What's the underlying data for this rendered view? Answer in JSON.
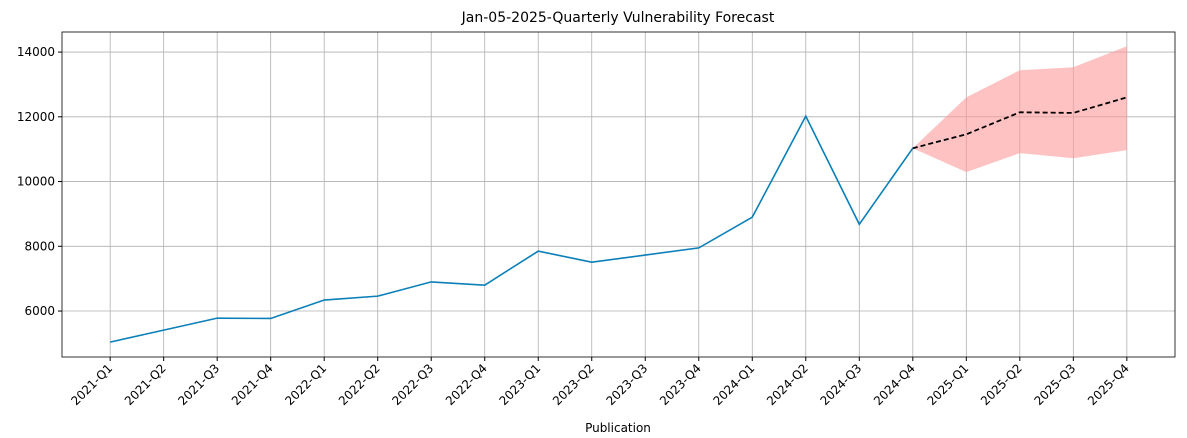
{
  "chart_data": {
    "type": "line",
    "title": "Jan-05-2025-Quarterly Vulnerability Forecast",
    "xlabel": "Publication",
    "categories": [
      "2021-Q1",
      "2021-Q2",
      "2021-Q3",
      "2021-Q4",
      "2022-Q1",
      "2022-Q2",
      "2022-Q3",
      "2022-Q4",
      "2023-Q1",
      "2023-Q2",
      "2023-Q3",
      "2023-Q4",
      "2024-Q1",
      "2024-Q2",
      "2024-Q3",
      "2024-Q4",
      "2025-Q1",
      "2025-Q2",
      "2025-Q3",
      "2025-Q4"
    ],
    "series": [
      {
        "color": "#0a7fb8",
        "values": [
          5040,
          5410,
          5780,
          5770,
          6340,
          6460,
          6900,
          6800,
          7850,
          7510,
          7730,
          7950,
          8900,
          12020,
          8680,
          11030,
          null,
          null,
          null,
          null
        ]
      },
      {
        "color": "#000000",
        "dashed": true,
        "values": [
          null,
          null,
          null,
          null,
          null,
          null,
          null,
          null,
          null,
          null,
          null,
          null,
          null,
          null,
          null,
          11030,
          11460,
          12140,
          12120,
          12600
        ]
      }
    ],
    "band": {
      "color": "#ff9999",
      "lower": [
        null,
        null,
        null,
        null,
        null,
        null,
        null,
        null,
        null,
        null,
        null,
        null,
        null,
        null,
        null,
        11030,
        10290,
        10880,
        10720,
        10970
      ],
      "upper": [
        null,
        null,
        null,
        null,
        null,
        null,
        null,
        null,
        null,
        null,
        null,
        null,
        null,
        null,
        null,
        11030,
        12600,
        13440,
        13530,
        14180
      ]
    },
    "ylim": [
      4580,
      14620
    ],
    "yticks": [
      6000,
      8000,
      10000,
      12000,
      14000
    ],
    "grid": true
  }
}
